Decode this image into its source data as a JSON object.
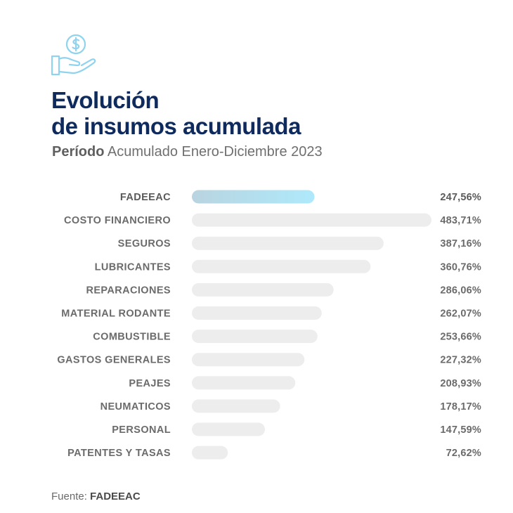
{
  "header": {
    "icon": "hand-dollar-icon",
    "title_line1": "Evolución",
    "title_line2": "de insumos acumulada",
    "subtitle_bold": "Período",
    "subtitle_rest": "Acumulado Enero-Diciembre 2023"
  },
  "colors": {
    "title": "#0f2a5c",
    "highlight_start": "#b9d4e0",
    "highlight_end": "#aee9fb",
    "bar": "#ededed",
    "icon": "#8fd3ef"
  },
  "chart_data": {
    "type": "bar",
    "orientation": "horizontal",
    "title": "Evolución de insumos acumulada",
    "subtitle": "Período Acumulado Enero-Diciembre 2023",
    "highlight": "FADEEAC",
    "categories": [
      "FADEEAC",
      "COSTO FINANCIERO",
      "SEGUROS",
      "LUBRICANTES",
      "REPARACIONES",
      "MATERIAL RODANTE",
      "COMBUSTIBLE",
      "GASTOS GENERALES",
      "PEAJES",
      "NEUMATICOS",
      "PERSONAL",
      "PATENTES Y TASAS"
    ],
    "values": [
      247.56,
      483.71,
      387.16,
      360.76,
      286.06,
      262.07,
      253.66,
      227.32,
      208.93,
      178.17,
      147.59,
      72.62
    ],
    "value_labels": [
      "247,56%",
      "483,71%",
      "387,16%",
      "360,76%",
      "286,06%",
      "262,07%",
      "253,66%",
      "227,32%",
      "208,93%",
      "178,17%",
      "147,59%",
      "72,62%"
    ],
    "unit": "%",
    "grid": false
  },
  "footer": {
    "source_label": "Fuente:",
    "source_name": "FADEEAC"
  }
}
